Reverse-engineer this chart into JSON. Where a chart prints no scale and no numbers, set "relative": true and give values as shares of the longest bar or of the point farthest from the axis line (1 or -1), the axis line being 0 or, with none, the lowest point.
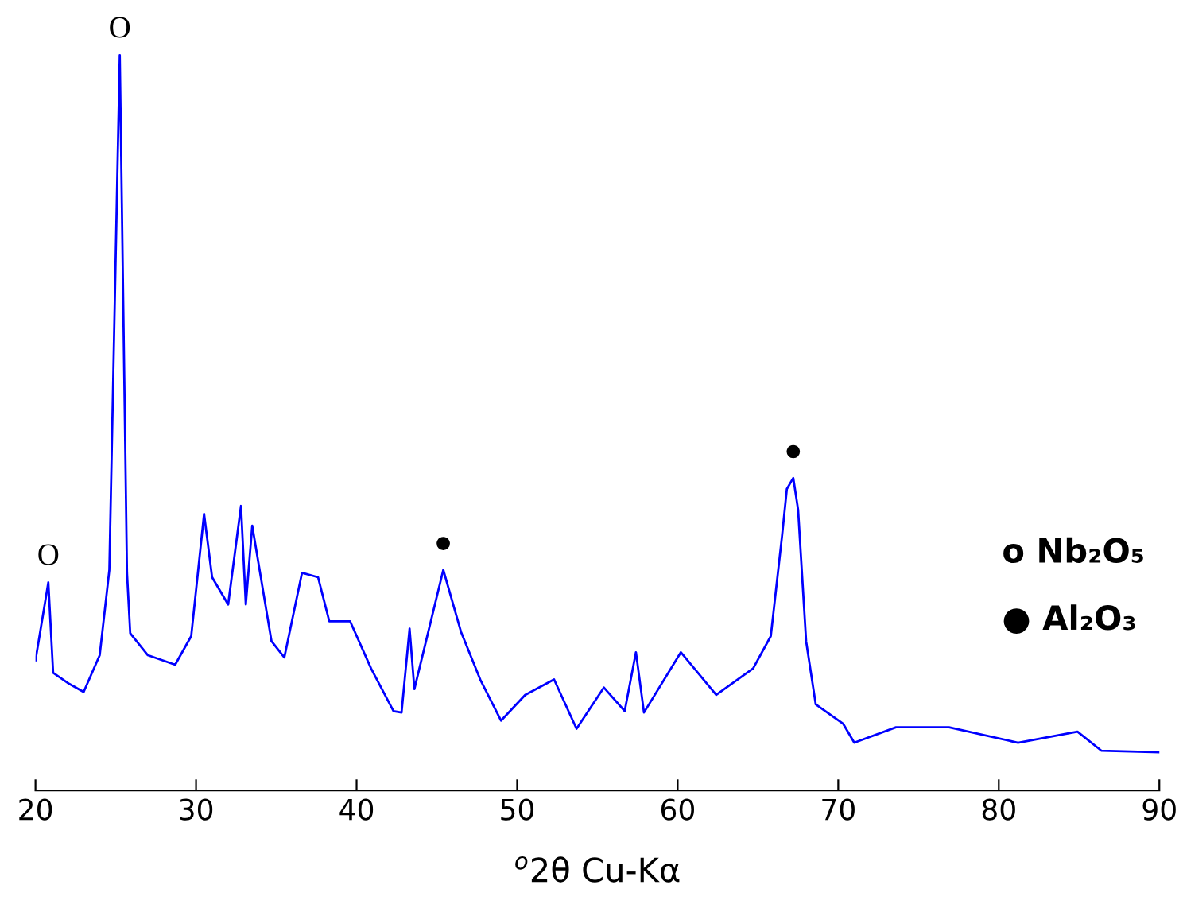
{
  "chart_data": {
    "type": "line",
    "relative": true,
    "xlabel": "$^{o}$2θ Cu-Kα",
    "xlim": [
      20,
      90
    ],
    "xticks": [
      20,
      30,
      40,
      50,
      60,
      70,
      80,
      90
    ],
    "grid": false,
    "legend": false,
    "marker": "none",
    "line_style": "solid",
    "series": [
      {
        "color": "#0000ff",
        "x": [
          20.0,
          20.8,
          21.1,
          22.1,
          23.0,
          24.0,
          24.6,
          25.25,
          25.7,
          25.9,
          27.0,
          28.7,
          29.7,
          30.5,
          31.0,
          32.0,
          32.8,
          33.1,
          33.5,
          34.7,
          35.5,
          36.6,
          37.6,
          38.3,
          39.6,
          40.9,
          42.3,
          42.8,
          43.3,
          43.6,
          45.4,
          46.5,
          47.7,
          49.0,
          50.5,
          52.3,
          53.7,
          55.4,
          56.7,
          57.4,
          57.9,
          60.2,
          62.4,
          64.7,
          65.8,
          66.5,
          66.8,
          67.2,
          67.5,
          68.0,
          68.6,
          70.3,
          71.0,
          73.6,
          76.9,
          81.2,
          84.9,
          86.4,
          90.0
        ],
        "values": [
          0.177,
          0.283,
          0.16,
          0.145,
          0.134,
          0.184,
          0.3,
          1.0,
          0.296,
          0.214,
          0.184,
          0.171,
          0.21,
          0.376,
          0.29,
          0.253,
          0.387,
          0.253,
          0.36,
          0.203,
          0.181,
          0.296,
          0.29,
          0.23,
          0.23,
          0.166,
          0.108,
          0.106,
          0.22,
          0.138,
          0.3,
          0.216,
          0.151,
          0.095,
          0.13,
          0.151,
          0.084,
          0.14,
          0.108,
          0.188,
          0.106,
          0.188,
          0.13,
          0.166,
          0.21,
          0.346,
          0.41,
          0.425,
          0.382,
          0.203,
          0.117,
          0.091,
          0.065,
          0.086,
          0.086,
          0.065,
          0.08,
          0.054,
          0.052
        ]
      }
    ],
    "annotations": [
      {
        "text": "O",
        "x": 20.8,
        "y": 0.283
      },
      {
        "text": "O",
        "x": 25.25,
        "y": 1.0
      },
      {
        "text": "●",
        "x": 45.4,
        "y": 0.3
      },
      {
        "text": "●",
        "x": 67.2,
        "y": 0.425
      },
      "o Nb₂O₅",
      "● Al₂O₃"
    ]
  }
}
